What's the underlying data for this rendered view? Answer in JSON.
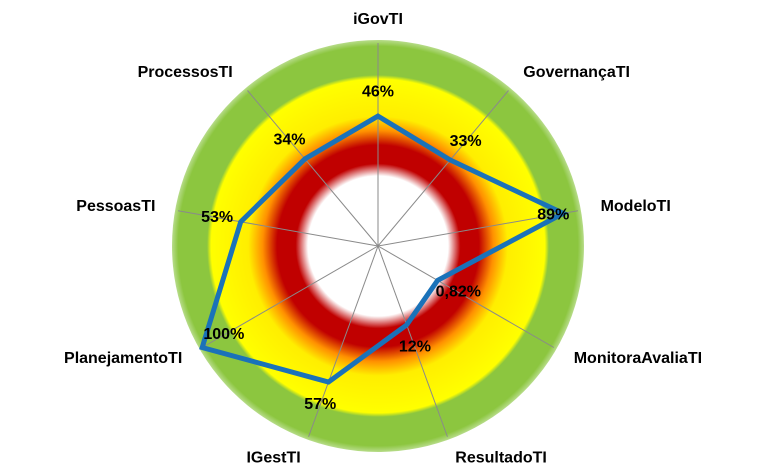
{
  "chart_data": {
    "type": "radar",
    "categories": [
      "iGovTI",
      "GovernançaTI",
      "ModeloTI",
      "MonitoraAvaliaTI",
      "ResultadoTI",
      "IGestTI",
      "PlanejamentoTI",
      "PessoasTI",
      "ProcessosTI"
    ],
    "series": [
      {
        "color": "#1a72b9",
        "values": [
          46,
          33,
          89,
          0.82,
          12,
          57,
          100,
          53,
          34
        ],
        "value_labels": [
          "46%",
          "33%",
          "89%",
          "0,82%",
          "12%",
          "57%",
          "100%",
          "53%",
          "34%"
        ]
      }
    ],
    "ylim": [
      -50,
      100
    ]
  }
}
